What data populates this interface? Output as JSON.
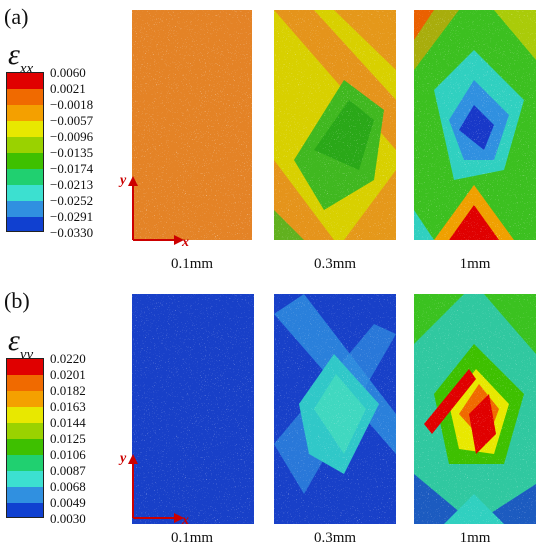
{
  "panels": [
    {
      "label": "(a)",
      "symbol_base": "ε",
      "symbol_sub": "xx",
      "legend_colors": [
        "#e00000",
        "#f06a00",
        "#f4a000",
        "#e8e800",
        "#9ad200",
        "#3ec000",
        "#20d070",
        "#3ce0d0",
        "#3090e0",
        "#1040d0"
      ],
      "legend_ticks": [
        "0.0060",
        "0.0021",
        "−0.0018",
        "−0.0057",
        "−0.0096",
        "−0.0135",
        "−0.0174",
        "−0.0213",
        "−0.0252",
        "−0.0291",
        "−0.0330"
      ],
      "captions": [
        "0.1mm",
        "0.3mm",
        "1mm"
      ],
      "axis_x": "x",
      "axis_y": "y"
    },
    {
      "label": "(b)",
      "symbol_base": "ε",
      "symbol_sub": "yy",
      "legend_colors": [
        "#e00000",
        "#f06a00",
        "#f4a000",
        "#e8e800",
        "#9ad200",
        "#3ec000",
        "#20d070",
        "#3ce0d0",
        "#3090e0",
        "#1040d0"
      ],
      "legend_ticks": [
        "0.0220",
        "0.0201",
        "0.0182",
        "0.0163",
        "0.0144",
        "0.0125",
        "0.0106",
        "0.0087",
        "0.0068",
        "0.0049",
        "0.0030"
      ],
      "captions": [
        "0.1mm",
        "0.3mm",
        "1mm"
      ],
      "axis_x": "x",
      "axis_y": "y"
    }
  ]
}
